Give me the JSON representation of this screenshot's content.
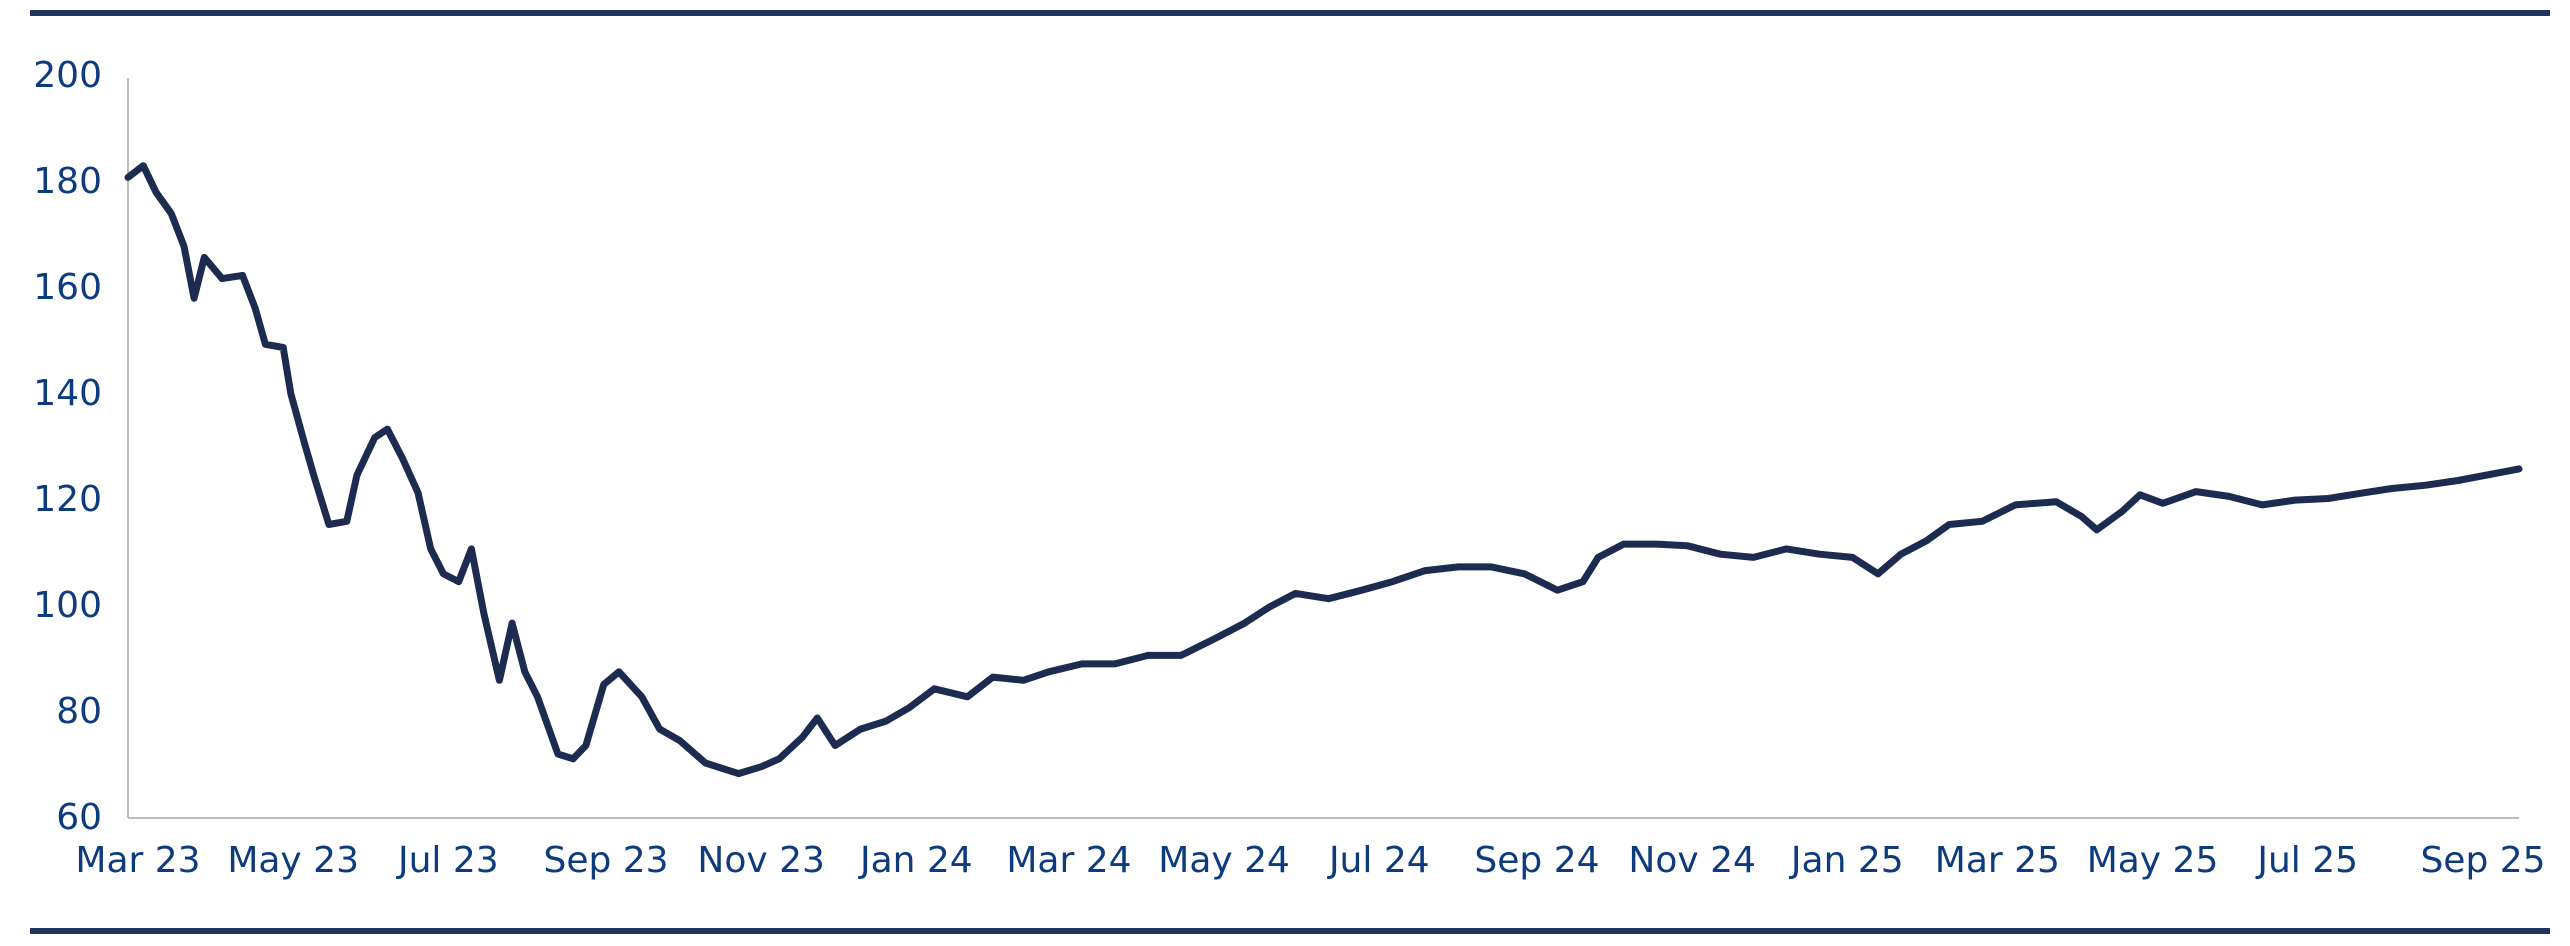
{
  "chart_data": {
    "type": "line",
    "title": "",
    "xlabel": "",
    "ylabel": "",
    "ylim": [
      60,
      200
    ],
    "yticks": [
      "60",
      "80",
      "100",
      "120",
      "140",
      "160",
      "180",
      "200"
    ],
    "xlim": [
      "2023-03-01",
      "2025-09-26"
    ],
    "xticks": [
      {
        "label": "Mar 23",
        "date": "2023-03-01"
      },
      {
        "label": "May 23",
        "date": "2023-05-01"
      },
      {
        "label": "Jul 23",
        "date": "2023-07-01"
      },
      {
        "label": "Sep 23",
        "date": "2023-09-01"
      },
      {
        "label": "Nov 23",
        "date": "2023-11-01"
      },
      {
        "label": "Jan 24",
        "date": "2024-01-01"
      },
      {
        "label": "Mar 24",
        "date": "2024-03-01"
      },
      {
        "label": "May 24",
        "date": "2024-05-01"
      },
      {
        "label": "Jul 24",
        "date": "2024-07-01"
      },
      {
        "label": "Sep 24",
        "date": "2024-09-01"
      },
      {
        "label": "Nov 24",
        "date": "2024-11-01"
      },
      {
        "label": "Jan 25",
        "date": "2025-01-01"
      },
      {
        "label": "Mar 25",
        "date": "2025-03-01"
      },
      {
        "label": "May 25",
        "date": "2025-05-01"
      },
      {
        "label": "Jul 25",
        "date": "2025-07-01"
      },
      {
        "label": "Sep 25",
        "date": "2025-09-01"
      }
    ],
    "grid": false,
    "colors": {
      "line": "#1c2b4f",
      "tick_text": "#0d3b7d",
      "rule": "#22345c",
      "axis": "#bdbdbd"
    },
    "series": [
      {
        "x": [
          "2023-03-01",
          "2023-03-07",
          "2023-03-12",
          "2023-03-18",
          "2023-03-23",
          "2023-03-27",
          "2023-03-31",
          "2023-04-07",
          "2023-04-15",
          "2023-04-20",
          "2023-04-24",
          "2023-05-01",
          "2023-05-04",
          "2023-05-09",
          "2023-05-13",
          "2023-05-19",
          "2023-05-26",
          "2023-05-30",
          "2023-06-06",
          "2023-06-11",
          "2023-06-17",
          "2023-06-23",
          "2023-06-28",
          "2023-07-03",
          "2023-07-09",
          "2023-07-14",
          "2023-07-19",
          "2023-07-25",
          "2023-07-30",
          "2023-08-04",
          "2023-08-09",
          "2023-08-17",
          "2023-08-23",
          "2023-08-28",
          "2023-09-04",
          "2023-09-10",
          "2023-09-19",
          "2023-09-26",
          "2023-10-04",
          "2023-10-14",
          "2023-10-27",
          "2023-11-05",
          "2023-11-12",
          "2023-11-21",
          "2023-11-27",
          "2023-12-04",
          "2023-12-14",
          "2023-12-24",
          "2024-01-02",
          "2024-01-12",
          "2024-01-25",
          "2024-02-04",
          "2024-02-16",
          "2024-02-26",
          "2024-03-10",
          "2024-03-23",
          "2024-04-05",
          "2024-04-18",
          "2024-05-01",
          "2024-05-13",
          "2024-05-23",
          "2024-06-02",
          "2024-06-15",
          "2024-06-28",
          "2024-07-10",
          "2024-07-23",
          "2024-08-05",
          "2024-08-18",
          "2024-08-31",
          "2024-09-13",
          "2024-09-23",
          "2024-09-29",
          "2024-10-09",
          "2024-10-22",
          "2024-11-03",
          "2024-11-16",
          "2024-11-29",
          "2024-12-12",
          "2024-12-25",
          "2025-01-07",
          "2025-01-17",
          "2025-01-26",
          "2025-02-05",
          "2025-02-14",
          "2025-02-27",
          "2025-03-12",
          "2025-03-28",
          "2025-04-07",
          "2025-04-13",
          "2025-04-23",
          "2025-04-30",
          "2025-05-09",
          "2025-05-22",
          "2025-06-04",
          "2025-06-17",
          "2025-06-30",
          "2025-07-13",
          "2025-07-26",
          "2025-08-07",
          "2025-08-20",
          "2025-09-02",
          "2025-09-26"
        ],
        "y": [
          180.5,
          182.7,
          177.7,
          173.7,
          167.5,
          157.7,
          165.4,
          161.4,
          162,
          155.8,
          149,
          148.4,
          139.7,
          131,
          124.3,
          115,
          115.6,
          124.3,
          131.4,
          133,
          127.4,
          121,
          110.4,
          105.7,
          104.2,
          110.4,
          98,
          85.6,
          96.4,
          87.2,
          82.5,
          71.7,
          70.8,
          73.3,
          84.8,
          87.2,
          82.5,
          76.4,
          74.2,
          70,
          68,
          69.3,
          70.8,
          74.8,
          78.5,
          73.3,
          76.4,
          77.9,
          80.4,
          84,
          82.5,
          86.2,
          85.6,
          87.2,
          88.7,
          88.7,
          90.3,
          90.3,
          93.4,
          96.4,
          99.5,
          102,
          101,
          102.6,
          104.2,
          106.3,
          107,
          107,
          105.7,
          102.6,
          104.2,
          108.8,
          111.3,
          111.3,
          111,
          109.4,
          108.8,
          110.4,
          109.4,
          108.8,
          105.7,
          109.4,
          111.9,
          115,
          115.6,
          118.7,
          119.3,
          116.5,
          114,
          117.5,
          120.6,
          119,
          121.2,
          120.3,
          118.7,
          119.6,
          119.9,
          120.9,
          121.8,
          122.4,
          123.3,
          125.5
        ]
      }
    ]
  }
}
